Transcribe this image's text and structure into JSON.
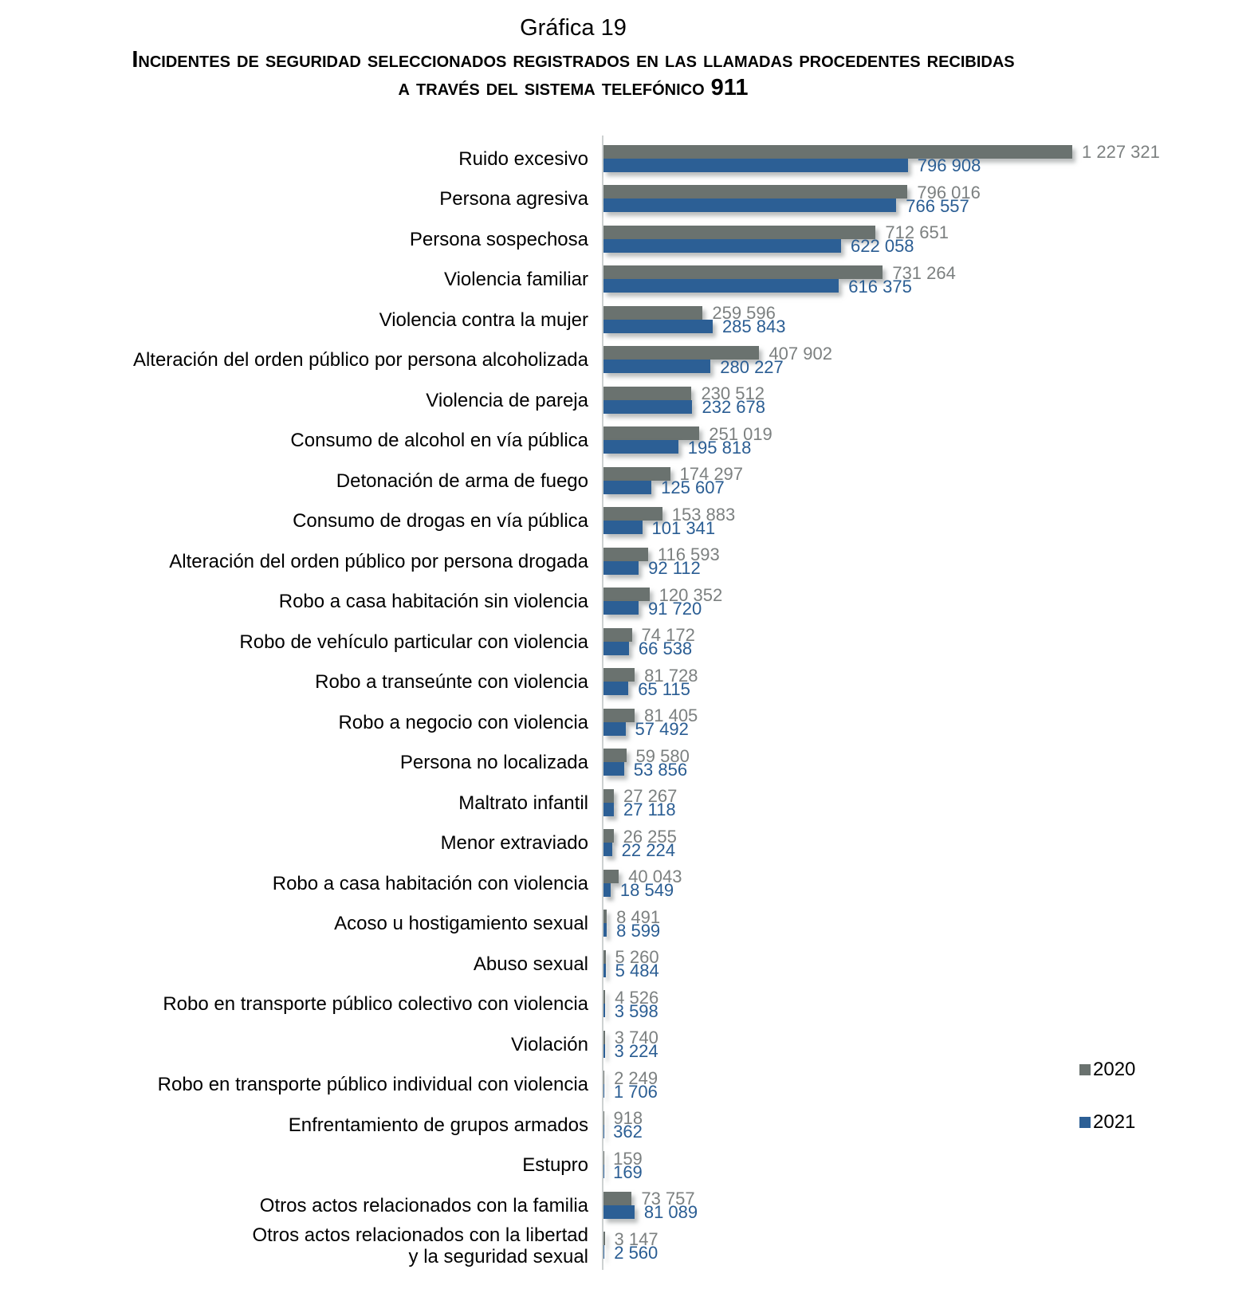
{
  "title": {
    "line1": "Gráfica 19",
    "line2": "Incidentes de seguridad seleccionados registrados en las llamadas procedentes recibidas",
    "line3": "a través del sistema telefónico 911"
  },
  "legend": {
    "position": "right",
    "items": [
      {
        "label": "2020",
        "color": "#6A726F"
      },
      {
        "label": "2021",
        "color": "#2C5F95"
      }
    ]
  },
  "colors": {
    "bar_2020": "#6A726F",
    "bar_2021": "#2C5F95",
    "value_label_2020": "#7C8080",
    "value_label_2021": "#2A5D93",
    "axis_line": "#CDD1D1",
    "category_text": "#000000",
    "background": "#FFFFFF"
  },
  "chart_data": {
    "type": "bar",
    "orientation": "horizontal",
    "title": "Incidentes de seguridad seleccionados registrados en las llamadas procedentes recibidas a través del sistema telefónico 911",
    "xlabel": "",
    "ylabel": "",
    "xlim": [
      0,
      1300000
    ],
    "grid": false,
    "value_labels": "outside-end",
    "thousands_separator": " ",
    "categories": [
      "Ruido excesivo",
      "Persona agresiva",
      "Persona sospechosa",
      "Violencia familiar",
      "Violencia contra la mujer",
      "Alteración del orden público por persona alcoholizada",
      "Violencia de pareja",
      "Consumo de alcohol en vía pública",
      "Detonación de arma de fuego",
      "Consumo de drogas en vía pública",
      "Alteración del orden público por persona drogada",
      "Robo a casa habitación sin violencia",
      "Robo de vehículo particular con violencia",
      "Robo a transeúnte con violencia",
      "Robo a negocio con violencia",
      "Persona no localizada",
      "Maltrato infantil",
      "Menor extraviado",
      "Robo a casa habitación con violencia",
      "Acoso u hostigamiento sexual",
      "Abuso sexual",
      "Robo en transporte público colectivo con violencia",
      "Violación",
      "Robo en transporte público individual con violencia",
      "Enfrentamiento de grupos armados",
      "Estupro",
      "Otros actos relacionados con la familia",
      "Otros actos relacionados con la libertad\ny la seguridad sexual"
    ],
    "series": [
      {
        "name": "2020",
        "color": "#6A726F",
        "values": [
          1227321,
          796016,
          712651,
          731264,
          259596,
          407902,
          230512,
          251019,
          174297,
          153883,
          116593,
          120352,
          74172,
          81728,
          81405,
          59580,
          27267,
          26255,
          40043,
          8491,
          5260,
          4526,
          3740,
          2249,
          918,
          159,
          73757,
          3147
        ]
      },
      {
        "name": "2021",
        "color": "#2C5F95",
        "values": [
          796908,
          766557,
          622058,
          616375,
          285843,
          280227,
          232678,
          195818,
          125607,
          101341,
          92112,
          91720,
          66538,
          65115,
          57492,
          53856,
          27118,
          22224,
          18549,
          8599,
          5484,
          3598,
          3224,
          1706,
          362,
          169,
          81089,
          2560
        ]
      }
    ]
  }
}
